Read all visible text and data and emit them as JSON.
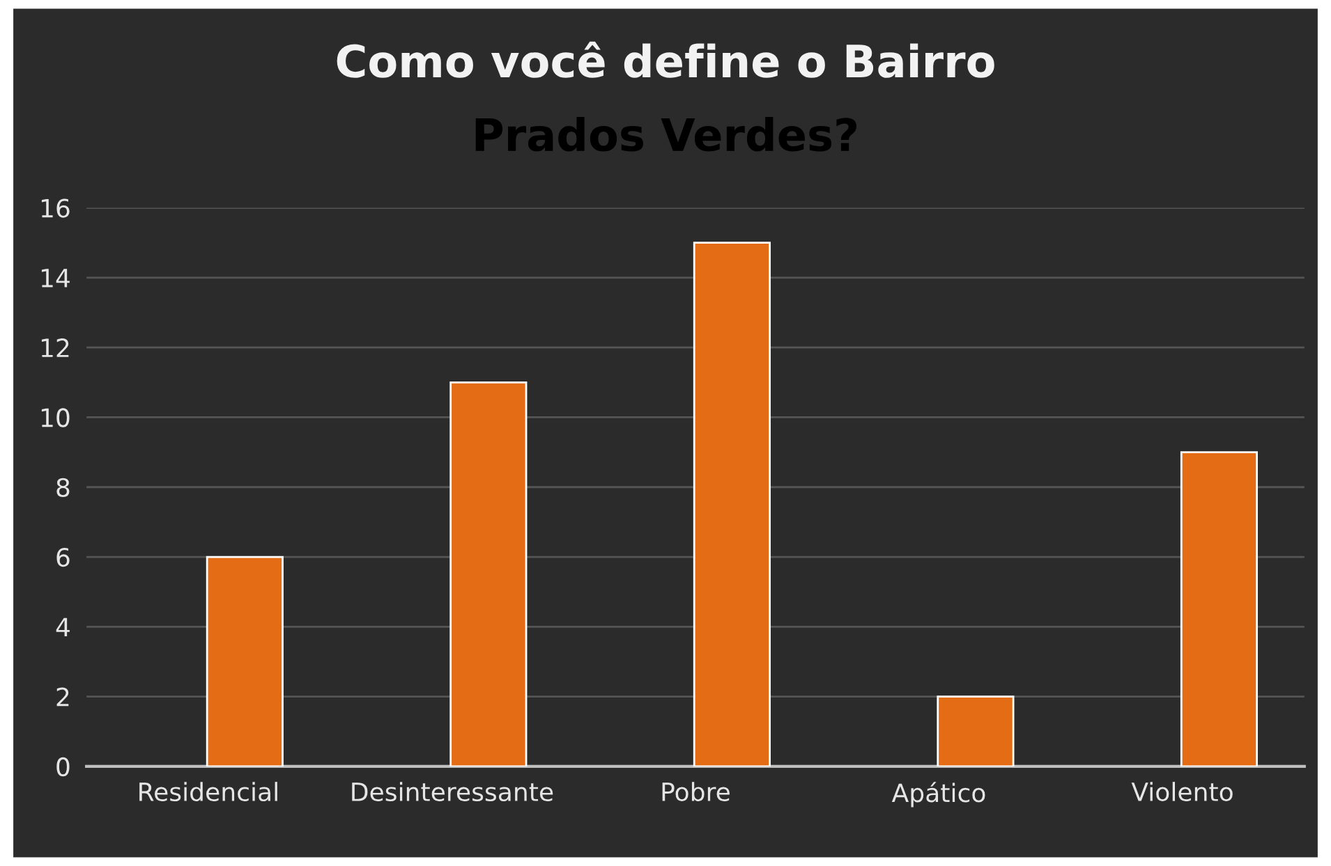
{
  "chart_data": {
    "type": "bar",
    "title": "Como você define o Bairro",
    "subtitle": "Prados Verdes?",
    "categories": [
      "Residencial",
      "Desinteressante",
      "Pobre",
      "Apático",
      "Violento"
    ],
    "values": [
      6,
      11,
      15,
      2,
      9
    ],
    "color": "#e46c14",
    "ylim": [
      0,
      16
    ],
    "yticks": [
      0,
      2,
      4,
      6,
      8,
      10,
      12,
      14,
      16
    ],
    "grid": "y"
  }
}
